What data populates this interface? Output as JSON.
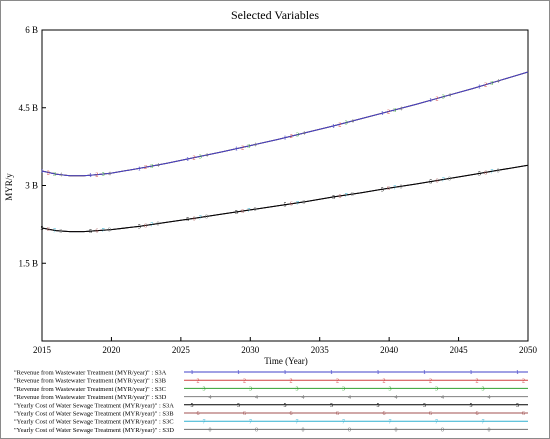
{
  "chart_data": {
    "type": "line",
    "title": "Selected Variables",
    "xlabel": "Time (Year)",
    "ylabel": "MYR/y",
    "xlim": [
      2015,
      2050
    ],
    "ylim": [
      0,
      6000000000
    ],
    "x_ticks": [
      2015,
      2020,
      2025,
      2030,
      2035,
      2040,
      2045,
      2050
    ],
    "x_tick_labels": [
      "2015",
      "2020",
      "2025",
      "2030",
      "2035",
      "2040",
      "2045",
      "2050"
    ],
    "y_ticks": [
      1500000000,
      3000000000,
      4500000000,
      6000000000
    ],
    "y_tick_labels": [
      "1.5 B",
      "3 B",
      "4.5 B",
      "6 B"
    ],
    "grid": false,
    "legend_position": "bottom",
    "x": [
      2015,
      2016,
      2017,
      2018,
      2019,
      2020,
      2022,
      2024,
      2026,
      2028,
      2030,
      2032,
      2034,
      2036,
      2038,
      2040,
      2042,
      2044,
      2046,
      2048,
      2050
    ],
    "series": [
      {
        "name": "\"Revenue from Wastewater Treatment (MYR/year)\" : S3A",
        "marker": "1",
        "color": "#4040c8",
        "values": [
          3280000000,
          3220000000,
          3190000000,
          3190000000,
          3210000000,
          3240000000,
          3330000000,
          3430000000,
          3540000000,
          3650000000,
          3770000000,
          3890000000,
          4020000000,
          4150000000,
          4290000000,
          4430000000,
          4570000000,
          4720000000,
          4870000000,
          5030000000,
          5190000000
        ]
      },
      {
        "name": "\"Revenue from Wastewater Treatment (MYR/year)\" : S3B",
        "marker": "2",
        "color": "#d04040",
        "values": [
          3280000000,
          3220000000,
          3190000000,
          3190000000,
          3210000000,
          3240000000,
          3330000000,
          3430000000,
          3540000000,
          3650000000,
          3770000000,
          3890000000,
          4020000000,
          4150000000,
          4290000000,
          4430000000,
          4570000000,
          4720000000,
          4870000000,
          5030000000,
          5190000000
        ]
      },
      {
        "name": "\"Revenue from Wastewater Treatment (MYR/year)\" : S3C",
        "marker": "3",
        "color": "#30a030",
        "values": [
          3280000000,
          3220000000,
          3190000000,
          3190000000,
          3210000000,
          3240000000,
          3330000000,
          3430000000,
          3540000000,
          3650000000,
          3770000000,
          3890000000,
          4020000000,
          4150000000,
          4290000000,
          4430000000,
          4570000000,
          4720000000,
          4870000000,
          5030000000,
          5190000000
        ]
      },
      {
        "name": "\"Revenue from Wastewater Treatment (MYR/year)\" : S3D",
        "marker": "4",
        "color": "#808080",
        "values": [
          3280000000,
          3220000000,
          3190000000,
          3190000000,
          3210000000,
          3240000000,
          3330000000,
          3430000000,
          3540000000,
          3650000000,
          3770000000,
          3890000000,
          4020000000,
          4150000000,
          4290000000,
          4430000000,
          4570000000,
          4720000000,
          4870000000,
          5030000000,
          5190000000
        ]
      },
      {
        "name": "\"Yearly Cost of Water Sewage Treatment (MYR/year)\" : S3A",
        "marker": "5",
        "color": "#000000",
        "values": [
          2180000000,
          2130000000,
          2110000000,
          2110000000,
          2130000000,
          2150000000,
          2210000000,
          2290000000,
          2370000000,
          2450000000,
          2530000000,
          2610000000,
          2690000000,
          2780000000,
          2860000000,
          2950000000,
          3030000000,
          3120000000,
          3210000000,
          3300000000,
          3390000000
        ]
      },
      {
        "name": "\"Yearly Cost of Water Sewage Treatment (MYR/year)\" : S3B",
        "marker": "6",
        "color": "#a05050",
        "values": [
          2180000000,
          2130000000,
          2110000000,
          2110000000,
          2130000000,
          2150000000,
          2210000000,
          2290000000,
          2370000000,
          2450000000,
          2530000000,
          2610000000,
          2690000000,
          2780000000,
          2860000000,
          2950000000,
          3030000000,
          3120000000,
          3210000000,
          3300000000,
          3390000000
        ]
      },
      {
        "name": "\"Yearly Cost of Water Sewage Treatment (MYR/year)\" : S3C",
        "marker": "7",
        "color": "#30b0d0",
        "values": [
          2180000000,
          2130000000,
          2110000000,
          2110000000,
          2130000000,
          2150000000,
          2210000000,
          2290000000,
          2370000000,
          2450000000,
          2530000000,
          2610000000,
          2690000000,
          2780000000,
          2860000000,
          2950000000,
          3030000000,
          3120000000,
          3210000000,
          3300000000,
          3390000000
        ]
      },
      {
        "name": "\"Yearly Cost of Water Sewage Treatment (MYR/year)\" : S3D",
        "marker": "0",
        "color": "#707070",
        "values": [
          2180000000,
          2130000000,
          2110000000,
          2110000000,
          2130000000,
          2150000000,
          2210000000,
          2290000000,
          2370000000,
          2450000000,
          2530000000,
          2610000000,
          2690000000,
          2780000000,
          2860000000,
          2950000000,
          3030000000,
          3120000000,
          3210000000,
          3300000000,
          3390000000
        ]
      }
    ]
  }
}
